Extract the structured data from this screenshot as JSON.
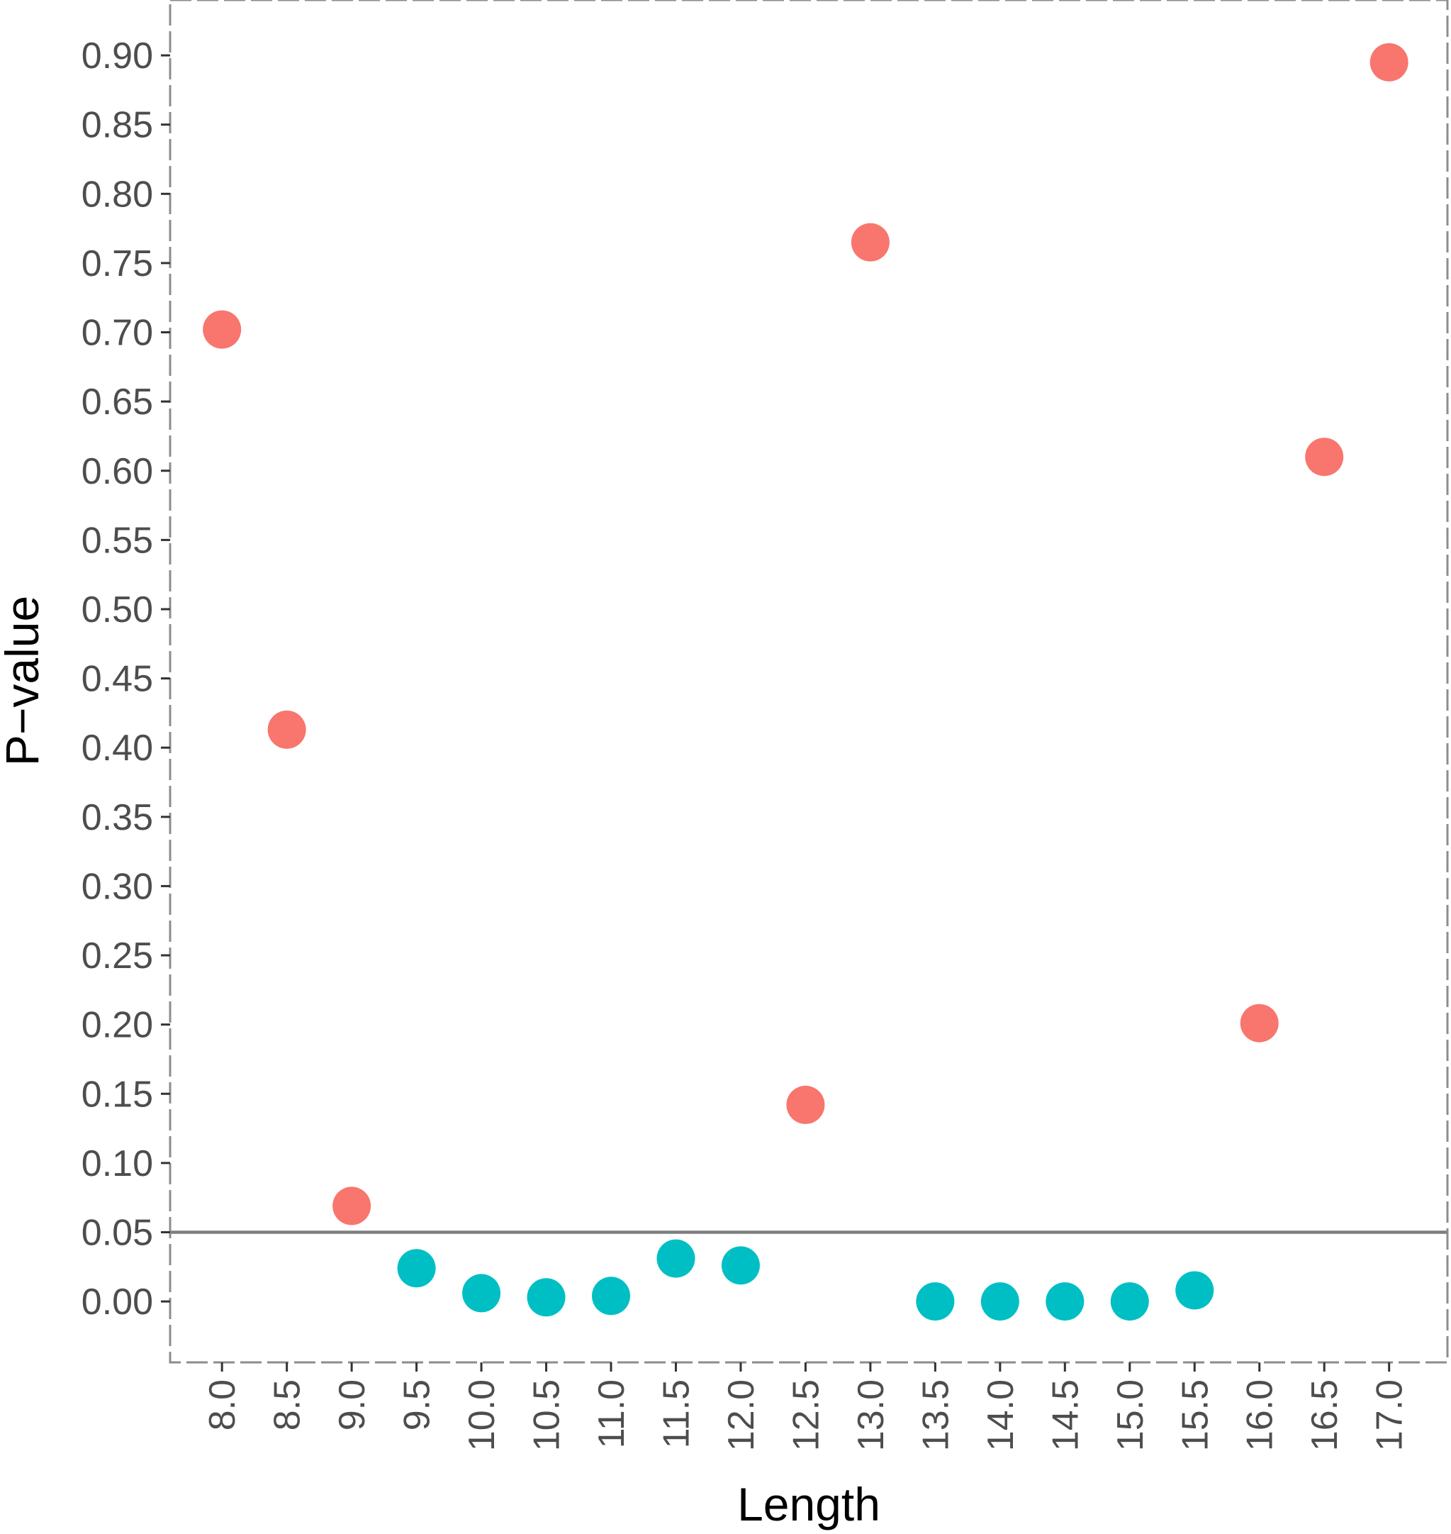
{
  "chart_data": {
    "type": "scatter",
    "title": "",
    "xlabel": "Length",
    "ylabel": "P−value",
    "xlim": [
      7.6,
      17.45
    ],
    "ylim": [
      -0.044,
      0.94
    ],
    "x_ticks": [
      8.0,
      8.5,
      9.0,
      9.5,
      10.0,
      10.5,
      11.0,
      11.5,
      12.0,
      12.5,
      13.0,
      13.5,
      14.0,
      14.5,
      15.0,
      15.5,
      16.0,
      16.5,
      17.0
    ],
    "x_tick_labels": [
      "8.0",
      "8.5",
      "9.0",
      "9.5",
      "10.0",
      "10.5",
      "11.0",
      "11.5",
      "12.0",
      "12.5",
      "13.0",
      "13.5",
      "14.0",
      "14.5",
      "15.0",
      "15.5",
      "16.0",
      "16.5",
      "17.0"
    ],
    "y_ticks": [
      0.0,
      0.05,
      0.1,
      0.15,
      0.2,
      0.25,
      0.3,
      0.35,
      0.4,
      0.45,
      0.5,
      0.55,
      0.6,
      0.65,
      0.7,
      0.75,
      0.8,
      0.85,
      0.9
    ],
    "y_tick_labels": [
      "0.00",
      "0.05",
      "0.10",
      "0.15",
      "0.20",
      "0.25",
      "0.30",
      "0.35",
      "0.40",
      "0.45",
      "0.50",
      "0.55",
      "0.60",
      "0.65",
      "0.70",
      "0.75",
      "0.80",
      "0.85",
      "0.90"
    ],
    "reference_line": {
      "axis": "y",
      "value": 0.05,
      "color": "#7f7f7f"
    },
    "grid": false,
    "panel_border": "dashed",
    "legend": "none",
    "series": [
      {
        "color": "#f8766d",
        "x": [
          8.0,
          8.5,
          9.0,
          12.5,
          13.0,
          16.0,
          16.5,
          17.0
        ],
        "y": [
          0.702,
          0.413,
          0.069,
          0.142,
          0.765,
          0.201,
          0.61,
          0.895
        ]
      },
      {
        "color": "#00bfc4",
        "x": [
          9.5,
          10.0,
          10.5,
          11.0,
          11.5,
          12.0,
          13.5,
          14.0,
          14.5,
          15.0,
          15.5
        ],
        "y": [
          0.024,
          0.006,
          0.003,
          0.004,
          0.031,
          0.026,
          0.0,
          0.0,
          0.0,
          0.0,
          0.008
        ]
      }
    ]
  }
}
